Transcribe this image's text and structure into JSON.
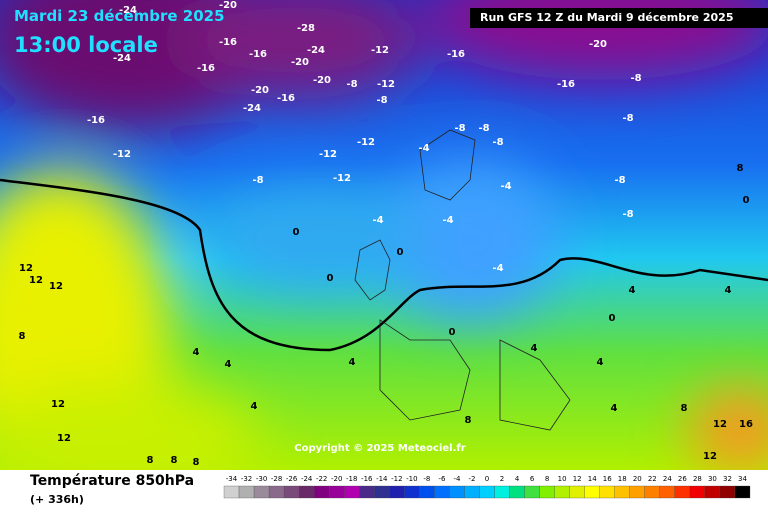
{
  "header": {
    "date": "Mardi 23 décembre 2025",
    "time": "13:00 locale",
    "run": "Run GFS 12 Z du Mardi 9 décembre 2025"
  },
  "map": {
    "labels": [
      -24,
      -20,
      -24,
      -16,
      -16,
      -20,
      -24,
      -28,
      -16,
      -20,
      -8,
      -12,
      -12,
      -8,
      -16,
      -20,
      -16,
      -20,
      -24,
      -16,
      -16,
      -12,
      -12,
      -12,
      -12,
      -8,
      -8,
      -8,
      -8,
      -4,
      -8,
      -8,
      -8,
      -8,
      -4,
      -4,
      -4,
      -4,
      0,
      0,
      0,
      4,
      4,
      4,
      4,
      8,
      8,
      8,
      12,
      12,
      12,
      12,
      12,
      8,
      8,
      12,
      16,
      12,
      8,
      0,
      4,
      4,
      0,
      0,
      4,
      4,
      8,
      4
    ]
  },
  "copyright": "Copyright © 2025 Meteociel.fr",
  "legend": {
    "title": "Température 850hPa",
    "subtitle": "(+ 336h)",
    "scale": [
      -34,
      -32,
      -30,
      -28,
      -26,
      -24,
      -22,
      -20,
      -18,
      -16,
      -14,
      -12,
      -10,
      -8,
      -6,
      -4,
      -2,
      0,
      2,
      4,
      6,
      8,
      10,
      12,
      14,
      16,
      18,
      20,
      22,
      24,
      26,
      28,
      30,
      32,
      34
    ],
    "colors": [
      "#d0d0d0",
      "#b0b0b0",
      "#9a8a9a",
      "#8a6a8a",
      "#7a4a7a",
      "#6a2a6a",
      "#800080",
      "#9a009a",
      "#b000b0",
      "#4a2a8a",
      "#303090",
      "#2020b0",
      "#1030d0",
      "#0050f0",
      "#0070ff",
      "#0090ff",
      "#00b0ff",
      "#00d0ff",
      "#00f0e0",
      "#00e080",
      "#40e040",
      "#80f000",
      "#b0f000",
      "#e0f000",
      "#ffff00",
      "#ffe000",
      "#ffc000",
      "#ffa000",
      "#ff8000",
      "#ff6000",
      "#ff3000",
      "#f00000",
      "#c00000",
      "#900000",
      "#000000"
    ]
  }
}
